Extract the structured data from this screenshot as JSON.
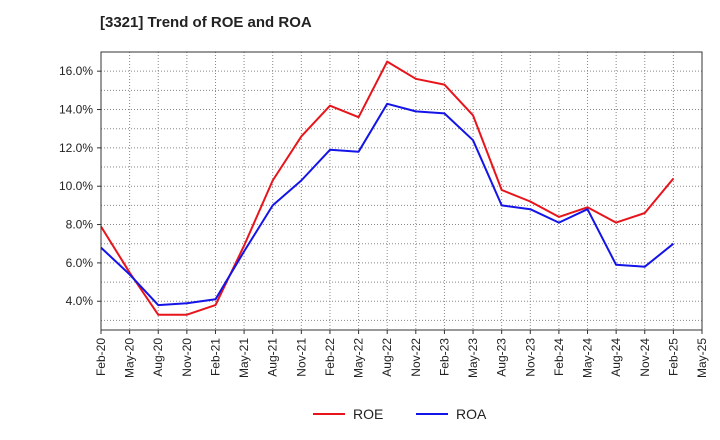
{
  "title": "[3321]  Trend of ROE and ROA",
  "chart_data": {
    "type": "line",
    "title": "[3321]  Trend of ROE and ROA",
    "x": [
      "Feb-20",
      "May-20",
      "Aug-20",
      "Nov-20",
      "Feb-21",
      "May-21",
      "Aug-21",
      "Nov-21",
      "Feb-22",
      "May-22",
      "Aug-22",
      "Nov-22",
      "Feb-23",
      "May-23",
      "Aug-23",
      "Nov-23",
      "Feb-24",
      "May-24",
      "Aug-24",
      "Nov-24",
      "Feb-25",
      "May-25"
    ],
    "xlabel": "",
    "ylabel": "",
    "ylim": [
      2.5,
      17.0
    ],
    "yticks": [
      4.0,
      6.0,
      8.0,
      10.0,
      12.0,
      14.0,
      16.0
    ],
    "ytick_labels": [
      "4.0%",
      "6.0%",
      "8.0%",
      "10.0%",
      "12.0%",
      "14.0%",
      "16.0%"
    ],
    "grid": true,
    "legend_position": "bottom",
    "series": [
      {
        "name": "ROE",
        "color": "#e8141b",
        "values": [
          7.9,
          5.5,
          3.3,
          3.3,
          3.8,
          6.9,
          10.3,
          12.6,
          14.2,
          13.6,
          16.5,
          15.6,
          15.3,
          13.7,
          9.8,
          9.2,
          8.4,
          8.9,
          8.1,
          8.6,
          10.4,
          null
        ]
      },
      {
        "name": "ROA",
        "color": "#1414e8",
        "values": [
          6.8,
          5.4,
          3.8,
          3.9,
          4.1,
          6.6,
          9.0,
          10.3,
          11.9,
          11.8,
          14.3,
          13.9,
          13.8,
          12.4,
          9.0,
          8.8,
          8.1,
          8.8,
          5.9,
          5.8,
          7.0,
          null
        ]
      }
    ]
  }
}
